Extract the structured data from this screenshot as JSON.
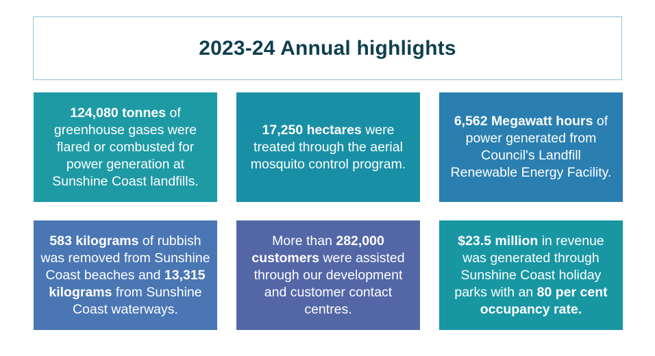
{
  "title": "2023-24 Annual highlights",
  "colors": {
    "title_text": "#0f3f4f",
    "title_border": "#8fc2d4",
    "card1": "#1e9aa5",
    "card2": "#198fa6",
    "card3": "#2a7fb0",
    "card4": "#4a76b4",
    "card5": "#5367a7",
    "card6": "#1897a3"
  },
  "cards": [
    {
      "b1": "124,080 tonnes",
      "t1": " of greenhouse gases were flared or combusted for power generation at Sunshine Coast landfills."
    },
    {
      "b1": "17,250 hectares",
      "t1": " were treated through the aerial mosquito control program."
    },
    {
      "b1": "6,562 Megawatt hours",
      "t1": " of power generated from Council's Landfill Renewable Energy Facility."
    },
    {
      "b1": "583 kilograms",
      "t1": " of rubbish was removed from Sunshine Coast beaches and ",
      "b2": "13,315 kilograms",
      "t2": " from Sunshine Coast waterways."
    },
    {
      "t0": "More than ",
      "b1": "282,000 customers",
      "t1": " were assisted through our development and customer contact centres."
    },
    {
      "b1": "$23.5 million",
      "t1": " in revenue was generated through Sunshine Coast holiday parks with an ",
      "b2": "80 per cent occupancy rate."
    }
  ]
}
